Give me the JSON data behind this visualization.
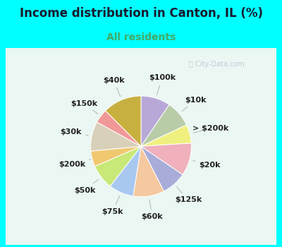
{
  "title": "Income distribution in Canton, IL (%)",
  "subtitle": "All residents",
  "title_color": "#1a1a2e",
  "subtitle_color": "#44aa66",
  "bg_color": "#00ffff",
  "chart_bg": "#d8f5ec",
  "slices": [
    {
      "label": "$100k",
      "value": 9.5,
      "color": "#b8a8d8"
    },
    {
      "label": "$10k",
      "value": 8.5,
      "color": "#b8cca8"
    },
    {
      "label": "> $200k",
      "value": 6.0,
      "color": "#f0f080"
    },
    {
      "label": "$20k",
      "value": 10.5,
      "color": "#f0b0bc"
    },
    {
      "label": "$125k",
      "value": 8.0,
      "color": "#a8acd8"
    },
    {
      "label": "$60k",
      "value": 10.0,
      "color": "#f5c8a0"
    },
    {
      "label": "$75k",
      "value": 8.0,
      "color": "#a8c8f0"
    },
    {
      "label": "$50k",
      "value": 8.0,
      "color": "#c8e878"
    },
    {
      "label": "$200k",
      "value": 5.0,
      "color": "#f0c870"
    },
    {
      "label": "$30k",
      "value": 9.5,
      "color": "#d8d0b8"
    },
    {
      "label": "$150k",
      "value": 4.5,
      "color": "#f09898"
    },
    {
      "label": "$40k",
      "value": 12.5,
      "color": "#c8b040"
    }
  ],
  "label_fontsize": 8,
  "label_color": "#222222",
  "line_color": "#aaaaaa",
  "watermark": "City-Data.com",
  "title_fontsize": 12,
  "subtitle_fontsize": 10
}
